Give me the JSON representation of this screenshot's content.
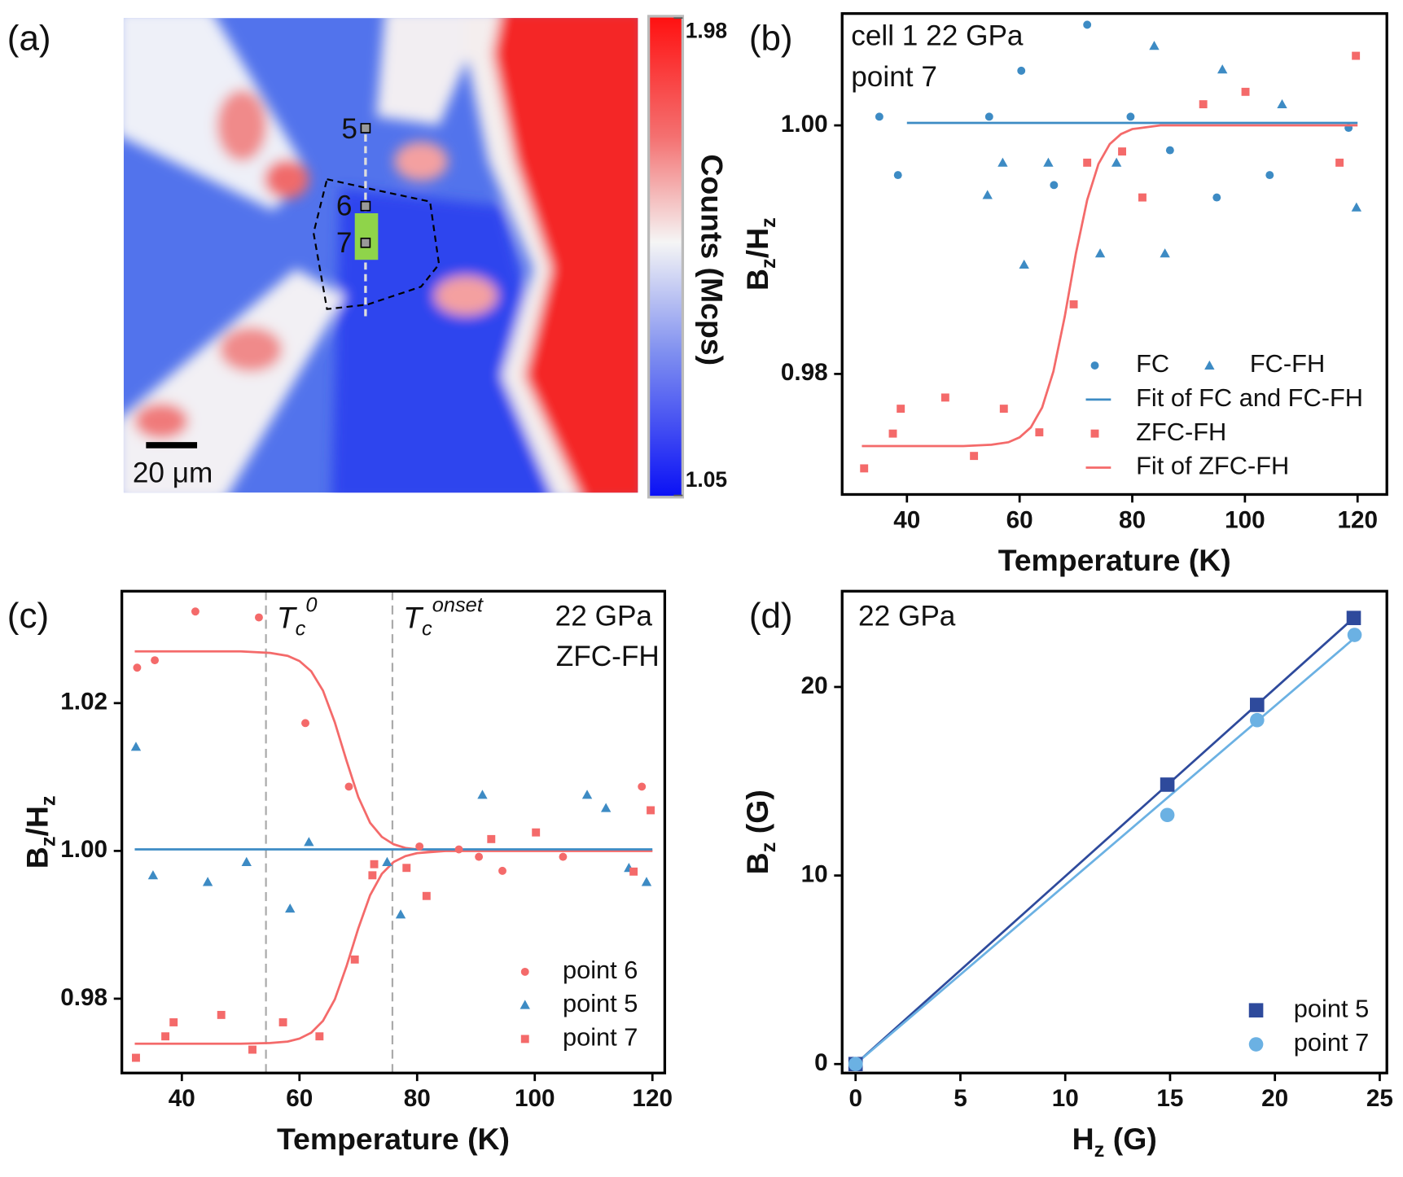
{
  "chart_data": [
    {
      "type": "image",
      "panel_label": "(a)",
      "colorbar": {
        "label": "Counts (Mcps)",
        "lim": [
          1.05,
          1.98
        ],
        "ticks": [
          1.98,
          1.05
        ]
      },
      "scale_bar": "20 μm",
      "point_labels": [
        "5",
        "6",
        "7"
      ]
    },
    {
      "type": "scatter",
      "panel_label": "(b)",
      "annotations": [
        "cell 1 22 GPa",
        "point 7"
      ],
      "xlabel": [
        {
          "text": "Temperature (K)"
        }
      ],
      "ylabel": [
        {
          "text": "B"
        },
        {
          "text": "z",
          "shift": "sub"
        },
        {
          "text": "/H"
        },
        {
          "text": "z",
          "shift": "sub"
        }
      ],
      "xlim": [
        28.5,
        125.2
      ],
      "ylim": [
        0.9703,
        1.009
      ],
      "xticks": [
        40,
        60,
        80,
        100,
        120
      ],
      "yticks": [
        0.98,
        {
          "value": 1,
          "label": "1.00"
        }
      ],
      "series": [
        {
          "name": "FC",
          "mark": "circle",
          "color": "#3d8bc4",
          "x": [
            35.1,
            38.4,
            60.3,
            54.6,
            66.1,
            72.0,
            79.7,
            86.7,
            95.0,
            104.4,
            118.4
          ],
          "values": [
            1.0007,
            0.996,
            1.0044,
            1.0007,
            0.9952,
            1.0081,
            1.0007,
            0.998,
            0.9942,
            0.996,
            0.9998
          ]
        },
        {
          "name": "FC-FH",
          "mark": "triangle",
          "color": "#3d8bc4",
          "x": [
            54.3,
            57.0,
            60.8,
            65.1,
            74.3,
            77.2,
            83.9,
            85.8,
            96.0,
            106.6,
            119.8
          ],
          "values": [
            0.9944,
            0.997,
            0.9888,
            0.997,
            0.9897,
            0.997,
            1.0064,
            0.9897,
            1.0045,
            1.0017,
            0.9934
          ]
        },
        {
          "name": "Fit of FC and FC-FH",
          "mark": "line",
          "color": "#3d8bc4",
          "x": [
            40,
            120
          ],
          "values": [
            1.0002,
            1.0002
          ]
        },
        {
          "name": "ZFC-FH",
          "mark": "square",
          "color": "#f46a6a",
          "x": [
            32.4,
            37.5,
            38.9,
            46.8,
            51.9,
            57.2,
            63.5,
            69.6,
            72.0,
            78.2,
            81.8,
            92.6,
            100.1,
            116.8,
            119.7
          ],
          "values": [
            0.9724,
            0.9752,
            0.9772,
            0.9781,
            0.9734,
            0.9772,
            0.9753,
            0.9856,
            0.997,
            0.9979,
            0.9942,
            1.0017,
            1.0027,
            0.997,
            1.0056
          ]
        },
        {
          "name": "Fit of ZFC-FH",
          "mark": "line",
          "color": "#f46a6a",
          "x": [
            32,
            40,
            50,
            55,
            58,
            60,
            62,
            64,
            66,
            68,
            70,
            72,
            74,
            76,
            78,
            80,
            85,
            90,
            100,
            110,
            120
          ],
          "values": [
            0.9742,
            0.9742,
            0.9742,
            0.9743,
            0.9745,
            0.9749,
            0.9757,
            0.9773,
            0.9802,
            0.9846,
            0.9897,
            0.994,
            0.9969,
            0.9985,
            0.9993,
            0.9997,
            1.0,
            1.0,
            1.0,
            1.0,
            1.0
          ]
        }
      ]
    },
    {
      "type": "scatter",
      "panel_label": "(c)",
      "annotations": [
        "22 GPa",
        "ZFC-FH"
      ],
      "xlabel": [
        {
          "text": "Temperature (K)"
        }
      ],
      "ylabel": [
        {
          "text": "B"
        },
        {
          "text": "z",
          "shift": "sub"
        },
        {
          "text": "/H"
        },
        {
          "text": "z",
          "shift": "sub"
        }
      ],
      "xlim": [
        29.8,
        122.1
      ],
      "ylim": [
        0.96994,
        1.03515
      ],
      "xticks": [
        40,
        60,
        80,
        100,
        120
      ],
      "yticks": [
        0.98,
        {
          "value": 1,
          "label": "1.00"
        },
        1.02
      ],
      "vlines": [
        {
          "x": 54.3,
          "label": [
            {
              "text": "T",
              "style": "italic"
            },
            {
              "text": "c",
              "shift": "sub",
              "style": "italic"
            },
            {
              "text": "0",
              "shift": "sup",
              "style": "italic"
            }
          ]
        },
        {
          "x": 75.8,
          "label": [
            {
              "text": "T",
              "style": "italic"
            },
            {
              "text": "c",
              "shift": "sub",
              "style": "italic"
            },
            {
              "text": "onset",
              "shift": "sup",
              "style": "italic"
            }
          ]
        }
      ],
      "series": [
        {
          "name": "point 6",
          "mark": "circle",
          "color": "#f46a6a",
          "x": [
            32.4,
            35.4,
            42.3,
            53.1,
            61.0,
            68.4,
            80.4,
            87.1,
            90.5,
            94.5,
            104.8,
            118.2
          ],
          "values": [
            1.0248,
            1.0258,
            1.0324,
            1.0316,
            1.0173,
            1.0087,
            1.0006,
            1.0002,
            0.9992,
            0.9973,
            0.9992,
            1.0087
          ]
        },
        {
          "name": "point 5",
          "mark": "triangle",
          "color": "#3d8bc4",
          "x": [
            32.2,
            35.1,
            44.4,
            51.0,
            61.6,
            58.4,
            74.9,
            77.2,
            91.1,
            108.9,
            112.1,
            116.0,
            119.0
          ],
          "values": [
            1.0141,
            0.9967,
            0.9958,
            0.9985,
            1.0012,
            0.9922,
            0.9985,
            0.9914,
            1.0076,
            1.0076,
            1.0058,
            0.9977,
            0.9958
          ]
        },
        {
          "name": "point 7",
          "mark": "square",
          "color": "#f46a6a",
          "x": [
            32.2,
            37.2,
            38.6,
            46.7,
            52.0,
            57.2,
            63.4,
            69.4,
            72.4,
            72.7,
            78.2,
            81.6,
            92.6,
            100.2,
            116.8,
            119.7
          ],
          "values": [
            0.972,
            0.9749,
            0.9768,
            0.9778,
            0.9731,
            0.9768,
            0.9749,
            0.9853,
            0.9967,
            0.9982,
            0.9977,
            0.9939,
            1.0016,
            1.0025,
            0.9972,
            1.0055
          ]
        }
      ],
      "fits": [
        {
          "color": "#f46a6a",
          "x": [
            32,
            40,
            50,
            55,
            58,
            60,
            62,
            64,
            66,
            68,
            70,
            72,
            74,
            76,
            78,
            80,
            85,
            90,
            100,
            110,
            120
          ],
          "values": [
            1.027,
            1.027,
            1.027,
            1.0268,
            1.0264,
            1.0257,
            1.0243,
            1.0217,
            1.0174,
            1.0122,
            1.0073,
            1.0038,
            1.0019,
            1.0009,
            1.0004,
            1.0002,
            1.0,
            1.0,
            1.0,
            1.0,
            1.0
          ]
        },
        {
          "color": "#f46a6a",
          "x": [
            32,
            40,
            50,
            55,
            58,
            60,
            62,
            64,
            66,
            68,
            70,
            72,
            74,
            76,
            78,
            80,
            85,
            90,
            100,
            110,
            120
          ],
          "values": [
            0.9739,
            0.9739,
            0.9739,
            0.974,
            0.9742,
            0.9746,
            0.9754,
            0.977,
            0.9799,
            0.9844,
            0.9895,
            0.994,
            0.9969,
            0.9985,
            0.9993,
            0.9997,
            1.0,
            1.0,
            1.0,
            1.0,
            1.0
          ]
        },
        {
          "color": "#3d8bc4",
          "x": [
            32,
            120
          ],
          "values": [
            1.0002,
            1.0002
          ]
        }
      ]
    },
    {
      "type": "scatter",
      "panel_label": "(d)",
      "annotations": [
        "22 GPa"
      ],
      "xlabel": [
        {
          "text": "H"
        },
        {
          "text": "z",
          "shift": "sub"
        },
        {
          "text": " (G)"
        }
      ],
      "ylabel": [
        {
          "text": "B"
        },
        {
          "text": "z",
          "shift": "sub"
        },
        {
          "text": " (G)"
        }
      ],
      "xlim": [
        -0.64,
        25.34
      ],
      "ylim": [
        -0.475,
        25.08
      ],
      "xticks": [
        0,
        5,
        10,
        15,
        20,
        25
      ],
      "yticks": [
        0,
        10,
        20
      ],
      "series": [
        {
          "name": "point 5",
          "mark": "square",
          "color": "#2e4a9c",
          "x": [
            0,
            14.87,
            19.15,
            23.76
          ],
          "values": [
            0,
            14.82,
            19.05,
            23.66
          ]
        },
        {
          "name": "point 7",
          "mark": "circle",
          "color": "#6bb1e3",
          "x": [
            0,
            14.87,
            19.15,
            23.8
          ],
          "values": [
            0,
            13.21,
            18.24,
            22.76
          ]
        }
      ],
      "fits": [
        {
          "color": "#2e4a9c",
          "x": [
            0,
            23.76
          ],
          "values": [
            0,
            23.66
          ]
        },
        {
          "color": "#6bb1e3",
          "x": [
            0,
            23.8
          ],
          "values": [
            0,
            22.6
          ]
        }
      ]
    }
  ]
}
